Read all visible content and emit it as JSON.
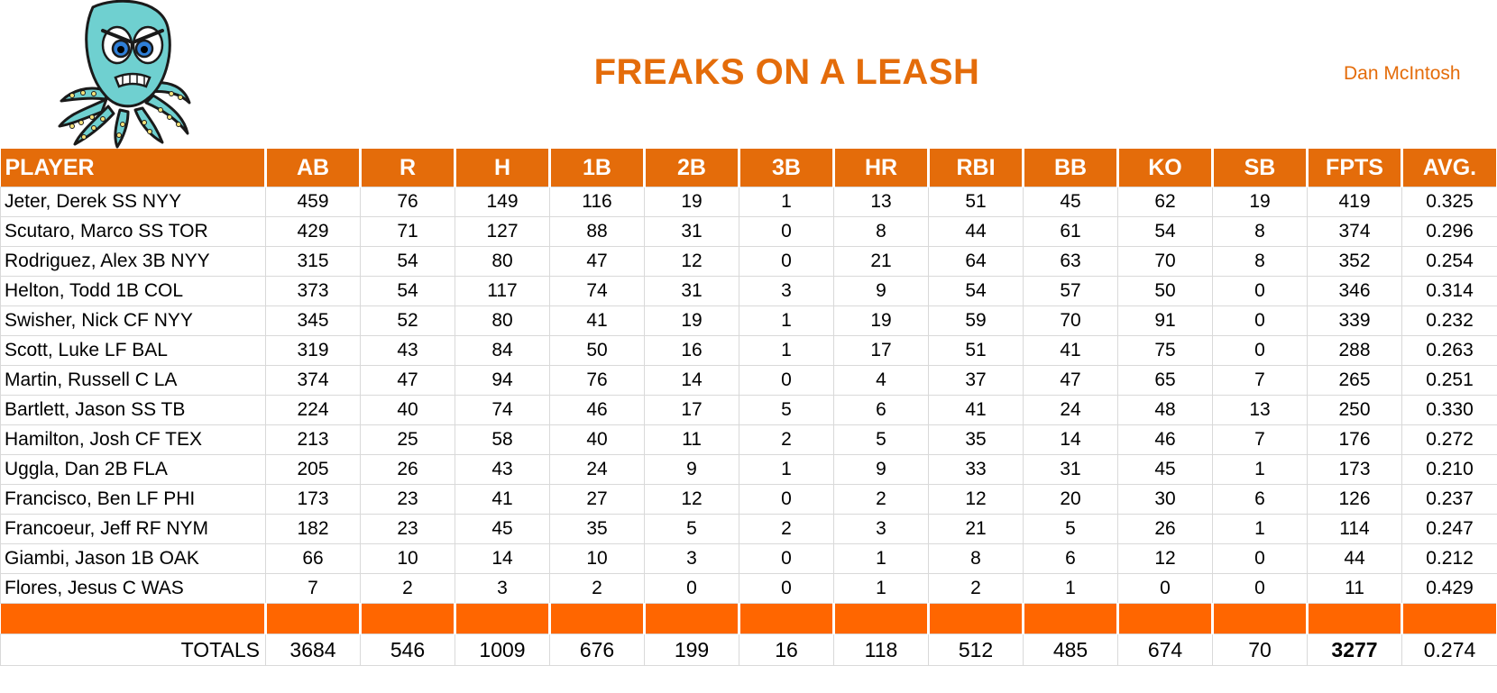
{
  "team_name": "FREAKS ON A LEASH",
  "owner": "Dan McIntosh",
  "logo_icon": "octopus-mascot-icon",
  "colors": {
    "accent": "#e46c0a",
    "spacer": "#ff6600"
  },
  "columns": [
    "PLAYER",
    "AB",
    "R",
    "H",
    "1B",
    "2B",
    "3B",
    "HR",
    "RBI",
    "BB",
    "KO",
    "SB",
    "FPTS",
    "AVG."
  ],
  "rows": [
    [
      "Jeter, Derek SS NYY",
      "459",
      "76",
      "149",
      "116",
      "19",
      "1",
      "13",
      "51",
      "45",
      "62",
      "19",
      "419",
      "0.325"
    ],
    [
      "Scutaro, Marco SS TOR",
      "429",
      "71",
      "127",
      "88",
      "31",
      "0",
      "8",
      "44",
      "61",
      "54",
      "8",
      "374",
      "0.296"
    ],
    [
      "Rodriguez, Alex 3B NYY",
      "315",
      "54",
      "80",
      "47",
      "12",
      "0",
      "21",
      "64",
      "63",
      "70",
      "8",
      "352",
      "0.254"
    ],
    [
      "Helton, Todd 1B COL",
      "373",
      "54",
      "117",
      "74",
      "31",
      "3",
      "9",
      "54",
      "57",
      "50",
      "0",
      "346",
      "0.314"
    ],
    [
      "Swisher, Nick CF NYY",
      "345",
      "52",
      "80",
      "41",
      "19",
      "1",
      "19",
      "59",
      "70",
      "91",
      "0",
      "339",
      "0.232"
    ],
    [
      "Scott, Luke LF BAL",
      "319",
      "43",
      "84",
      "50",
      "16",
      "1",
      "17",
      "51",
      "41",
      "75",
      "0",
      "288",
      "0.263"
    ],
    [
      "Martin, Russell C LA",
      "374",
      "47",
      "94",
      "76",
      "14",
      "0",
      "4",
      "37",
      "47",
      "65",
      "7",
      "265",
      "0.251"
    ],
    [
      "Bartlett, Jason SS TB",
      "224",
      "40",
      "74",
      "46",
      "17",
      "5",
      "6",
      "41",
      "24",
      "48",
      "13",
      "250",
      "0.330"
    ],
    [
      "Hamilton, Josh CF TEX",
      "213",
      "25",
      "58",
      "40",
      "11",
      "2",
      "5",
      "35",
      "14",
      "46",
      "7",
      "176",
      "0.272"
    ],
    [
      "Uggla, Dan 2B FLA",
      "205",
      "26",
      "43",
      "24",
      "9",
      "1",
      "9",
      "33",
      "31",
      "45",
      "1",
      "173",
      "0.210"
    ],
    [
      "Francisco, Ben LF PHI",
      "173",
      "23",
      "41",
      "27",
      "12",
      "0",
      "2",
      "12",
      "20",
      "30",
      "6",
      "126",
      "0.237"
    ],
    [
      "Francoeur, Jeff RF NYM",
      "182",
      "23",
      "45",
      "35",
      "5",
      "2",
      "3",
      "21",
      "5",
      "26",
      "1",
      "114",
      "0.247"
    ],
    [
      "Giambi, Jason 1B OAK",
      "66",
      "10",
      "14",
      "10",
      "3",
      "0",
      "1",
      "8",
      "6",
      "12",
      "0",
      "44",
      "0.212"
    ],
    [
      "Flores, Jesus C WAS",
      "7",
      "2",
      "3",
      "2",
      "0",
      "0",
      "1",
      "2",
      "1",
      "0",
      "0",
      "11",
      "0.429"
    ]
  ],
  "totals": [
    "TOTALS",
    "3684",
    "546",
    "1009",
    "676",
    "199",
    "16",
    "118",
    "512",
    "485",
    "674",
    "70",
    "3277",
    "0.274"
  ]
}
